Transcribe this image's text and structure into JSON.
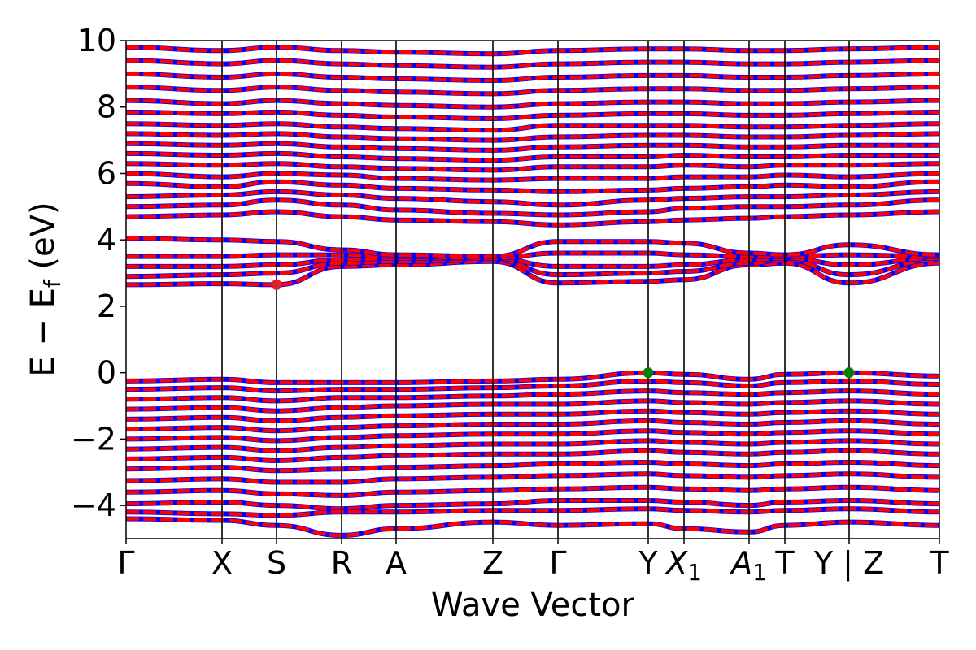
{
  "chart_data": {
    "type": "line",
    "title": "",
    "xlabel": "Wave Vector",
    "ylabel_parts": {
      "base": "E − E",
      "sub": "f",
      "unit": " (eV)"
    },
    "ylim": [
      -5,
      10
    ],
    "yticks": [
      -4,
      -2,
      0,
      2,
      4,
      6,
      8,
      10
    ],
    "ytick_labels": [
      "−4",
      "−2",
      "0",
      "2",
      "4",
      "6",
      "8",
      "10"
    ],
    "grid": false,
    "legend": "none",
    "colors": {
      "band_primary": "#ff0000",
      "band_secondary": "#0000ff",
      "vbm_marker": "#008000",
      "cbm_marker": "#e0202a",
      "axis": "#000000"
    },
    "k_path": [
      {
        "label": "Γ",
        "x": 0.0
      },
      {
        "label": "X",
        "x": 0.118
      },
      {
        "label": "S",
        "x": 0.185
      },
      {
        "label": "R",
        "x": 0.265
      },
      {
        "label": "A",
        "x": 0.332
      },
      {
        "label": "Z",
        "x": 0.451
      },
      {
        "label": "Γ",
        "x": 0.531
      },
      {
        "label": "Y",
        "x": 0.642
      },
      {
        "label": "X",
        "sub": "1",
        "italic": true,
        "x": 0.686
      },
      {
        "label": "A",
        "sub": "1",
        "italic": true,
        "x": 0.766
      },
      {
        "label": "T",
        "x": 0.81
      },
      {
        "label": "Y | Z",
        "x": 0.889
      },
      {
        "label": "T",
        "x": 1.0
      }
    ],
    "cbm_marker": {
      "x": 0.185,
      "y": 2.65
    },
    "vbm_markers": [
      {
        "x": 0.642,
        "y": 0.0
      },
      {
        "x": 0.889,
        "y": 0.0
      }
    ],
    "conduction_bands": [
      {
        "x": [
          0.0,
          0.118,
          0.185,
          0.265,
          0.332,
          0.451,
          0.531,
          0.642,
          0.686,
          0.766,
          0.81,
          0.889,
          1.0
        ],
        "y": [
          2.65,
          2.68,
          2.65,
          3.2,
          3.25,
          3.35,
          2.7,
          2.75,
          2.8,
          3.25,
          3.3,
          2.7,
          3.3
        ]
      },
      {
        "x": [
          0.0,
          0.118,
          0.185,
          0.265,
          0.332,
          0.451,
          0.531,
          0.642,
          0.686,
          0.766,
          0.81,
          0.889,
          1.0
        ],
        "y": [
          2.9,
          2.95,
          3.0,
          3.3,
          3.35,
          3.4,
          2.95,
          3.0,
          3.05,
          3.3,
          3.4,
          2.95,
          3.4
        ]
      },
      {
        "x": [
          0.0,
          0.118,
          0.185,
          0.265,
          0.332,
          0.451,
          0.531,
          0.642,
          0.686,
          0.766,
          0.81,
          0.889,
          1.0
        ],
        "y": [
          3.2,
          3.2,
          3.25,
          3.4,
          3.45,
          3.45,
          3.2,
          3.2,
          3.25,
          3.4,
          3.45,
          3.25,
          3.45
        ]
      },
      {
        "x": [
          0.0,
          0.118,
          0.185,
          0.265,
          0.332,
          0.451,
          0.531,
          0.642,
          0.686,
          0.766,
          0.81,
          0.889,
          1.0
        ],
        "y": [
          3.5,
          3.5,
          3.55,
          3.55,
          3.5,
          3.45,
          3.6,
          3.6,
          3.55,
          3.5,
          3.5,
          3.55,
          3.5
        ]
      },
      {
        "x": [
          0.0,
          0.118,
          0.185,
          0.265,
          0.332,
          0.451,
          0.531,
          0.642,
          0.686,
          0.766,
          0.81,
          0.889,
          1.0
        ],
        "y": [
          4.05,
          4.0,
          3.95,
          3.7,
          3.55,
          3.5,
          3.95,
          3.95,
          3.9,
          3.6,
          3.55,
          3.85,
          3.55
        ]
      },
      {
        "x": [
          0.0,
          0.118,
          0.185,
          0.265,
          0.332,
          0.451,
          0.531,
          0.642,
          0.686,
          0.766,
          0.81,
          0.889,
          1.0
        ],
        "y": [
          4.7,
          4.75,
          4.85,
          4.7,
          4.6,
          4.55,
          4.45,
          4.55,
          4.6,
          4.65,
          4.7,
          4.75,
          4.85
        ]
      },
      {
        "x": [
          0.0,
          0.118,
          0.185,
          0.265,
          0.332,
          0.451,
          0.531,
          0.642,
          0.686,
          0.766,
          0.81,
          0.889,
          1.0
        ],
        "y": [
          5.0,
          5.05,
          5.2,
          5.05,
          4.9,
          4.8,
          4.75,
          4.85,
          4.95,
          5.0,
          5.0,
          5.05,
          5.2
        ]
      },
      {
        "x": [
          0.0,
          0.118,
          0.185,
          0.265,
          0.332,
          0.451,
          0.531,
          0.642,
          0.686,
          0.766,
          0.81,
          0.889,
          1.0
        ],
        "y": [
          5.3,
          5.35,
          5.45,
          5.35,
          5.25,
          5.15,
          5.05,
          5.2,
          5.25,
          5.3,
          5.3,
          5.35,
          5.45
        ]
      },
      {
        "x": [
          0.0,
          0.118,
          0.185,
          0.265,
          0.332,
          0.451,
          0.531,
          0.642,
          0.686,
          0.766,
          0.81,
          0.889,
          1.0
        ],
        "y": [
          5.7,
          5.6,
          5.75,
          5.65,
          5.55,
          5.5,
          5.45,
          5.5,
          5.55,
          5.6,
          5.65,
          5.6,
          5.75
        ]
      },
      {
        "x": [
          0.0,
          0.118,
          0.185,
          0.265,
          0.332,
          0.451,
          0.531,
          0.642,
          0.686,
          0.766,
          0.81,
          0.889,
          1.0
        ],
        "y": [
          6.0,
          5.9,
          6.0,
          5.95,
          5.85,
          5.8,
          5.85,
          5.85,
          5.9,
          5.9,
          5.95,
          5.9,
          6.0
        ]
      },
      {
        "x": [
          0.0,
          0.118,
          0.185,
          0.265,
          0.332,
          0.451,
          0.531,
          0.642,
          0.686,
          0.766,
          0.81,
          0.889,
          1.0
        ],
        "y": [
          6.3,
          6.25,
          6.3,
          6.2,
          6.15,
          6.1,
          6.2,
          6.2,
          6.25,
          6.2,
          6.25,
          6.25,
          6.3
        ]
      },
      {
        "x": [
          0.0,
          0.118,
          0.185,
          0.265,
          0.332,
          0.451,
          0.531,
          0.642,
          0.686,
          0.766,
          0.81,
          0.889,
          1.0
        ],
        "y": [
          6.6,
          6.55,
          6.6,
          6.5,
          6.45,
          6.4,
          6.5,
          6.5,
          6.55,
          6.5,
          6.5,
          6.55,
          6.55
        ]
      },
      {
        "x": [
          0.0,
          0.118,
          0.185,
          0.265,
          0.332,
          0.451,
          0.531,
          0.642,
          0.686,
          0.766,
          0.81,
          0.889,
          1.0
        ],
        "y": [
          6.9,
          6.85,
          6.9,
          6.8,
          6.75,
          6.7,
          6.8,
          6.85,
          6.85,
          6.8,
          6.8,
          6.85,
          6.85
        ]
      },
      {
        "x": [
          0.0,
          0.118,
          0.185,
          0.265,
          0.332,
          0.451,
          0.531,
          0.642,
          0.686,
          0.766,
          0.81,
          0.889,
          1.0
        ],
        "y": [
          7.2,
          7.15,
          7.2,
          7.1,
          7.05,
          7.0,
          7.1,
          7.15,
          7.15,
          7.1,
          7.1,
          7.15,
          7.2
        ]
      },
      {
        "x": [
          0.0,
          0.118,
          0.185,
          0.265,
          0.332,
          0.451,
          0.531,
          0.642,
          0.686,
          0.766,
          0.81,
          0.889,
          1.0
        ],
        "y": [
          7.5,
          7.45,
          7.5,
          7.4,
          7.35,
          7.3,
          7.45,
          7.45,
          7.45,
          7.4,
          7.4,
          7.45,
          7.5
        ]
      },
      {
        "x": [
          0.0,
          0.118,
          0.185,
          0.265,
          0.332,
          0.451,
          0.531,
          0.642,
          0.686,
          0.766,
          0.81,
          0.889,
          1.0
        ],
        "y": [
          7.85,
          7.8,
          7.85,
          7.75,
          7.7,
          7.65,
          7.75,
          7.8,
          7.8,
          7.75,
          7.75,
          7.8,
          7.85
        ]
      },
      {
        "x": [
          0.0,
          0.118,
          0.185,
          0.265,
          0.332,
          0.451,
          0.531,
          0.642,
          0.686,
          0.766,
          0.81,
          0.889,
          1.0
        ],
        "y": [
          8.2,
          8.1,
          8.2,
          8.1,
          8.05,
          8.0,
          8.1,
          8.15,
          8.15,
          8.1,
          8.1,
          8.15,
          8.2
        ]
      },
      {
        "x": [
          0.0,
          0.118,
          0.185,
          0.265,
          0.332,
          0.451,
          0.531,
          0.642,
          0.686,
          0.766,
          0.81,
          0.889,
          1.0
        ],
        "y": [
          8.6,
          8.5,
          8.6,
          8.5,
          8.45,
          8.4,
          8.5,
          8.55,
          8.55,
          8.5,
          8.5,
          8.55,
          8.6
        ]
      },
      {
        "x": [
          0.0,
          0.118,
          0.185,
          0.265,
          0.332,
          0.451,
          0.531,
          0.642,
          0.686,
          0.766,
          0.81,
          0.889,
          1.0
        ],
        "y": [
          9.0,
          8.9,
          9.0,
          8.9,
          8.85,
          8.8,
          8.9,
          8.95,
          8.95,
          8.9,
          8.9,
          8.95,
          9.0
        ]
      },
      {
        "x": [
          0.0,
          0.118,
          0.185,
          0.265,
          0.332,
          0.451,
          0.531,
          0.642,
          0.686,
          0.766,
          0.81,
          0.889,
          1.0
        ],
        "y": [
          9.4,
          9.3,
          9.4,
          9.3,
          9.25,
          9.2,
          9.3,
          9.35,
          9.35,
          9.3,
          9.3,
          9.35,
          9.4
        ]
      },
      {
        "x": [
          0.0,
          0.118,
          0.185,
          0.265,
          0.332,
          0.451,
          0.531,
          0.642,
          0.686,
          0.766,
          0.81,
          0.889,
          1.0
        ],
        "y": [
          9.8,
          9.7,
          9.8,
          9.7,
          9.65,
          9.6,
          9.7,
          9.75,
          9.75,
          9.7,
          9.7,
          9.75,
          9.8
        ]
      }
    ],
    "valence_bands": [
      {
        "x": [
          0.0,
          0.118,
          0.185,
          0.265,
          0.332,
          0.451,
          0.531,
          0.642,
          0.686,
          0.766,
          0.81,
          0.889,
          1.0
        ],
        "y": [
          -0.25,
          -0.2,
          -0.3,
          -0.3,
          -0.3,
          -0.25,
          -0.2,
          0.0,
          -0.05,
          -0.2,
          -0.05,
          0.0,
          -0.1
        ]
      },
      {
        "x": [
          0.0,
          0.118,
          0.185,
          0.265,
          0.332,
          0.451,
          0.531,
          0.642,
          0.686,
          0.766,
          0.81,
          0.889,
          1.0
        ],
        "y": [
          -0.5,
          -0.45,
          -0.55,
          -0.5,
          -0.5,
          -0.45,
          -0.4,
          -0.25,
          -0.3,
          -0.4,
          -0.3,
          -0.25,
          -0.35
        ]
      },
      {
        "x": [
          0.0,
          0.118,
          0.185,
          0.265,
          0.332,
          0.451,
          0.531,
          0.642,
          0.686,
          0.766,
          0.81,
          0.889,
          1.0
        ],
        "y": [
          -0.8,
          -0.75,
          -0.85,
          -0.75,
          -0.75,
          -0.7,
          -0.65,
          -0.55,
          -0.6,
          -0.65,
          -0.6,
          -0.55,
          -0.65
        ]
      },
      {
        "x": [
          0.0,
          0.118,
          0.185,
          0.265,
          0.332,
          0.451,
          0.531,
          0.642,
          0.686,
          0.766,
          0.81,
          0.889,
          1.0
        ],
        "y": [
          -1.1,
          -1.05,
          -1.15,
          -1.05,
          -1.0,
          -0.95,
          -0.95,
          -0.85,
          -0.9,
          -0.95,
          -0.9,
          -0.85,
          -0.95
        ]
      },
      {
        "x": [
          0.0,
          0.118,
          0.185,
          0.265,
          0.332,
          0.451,
          0.531,
          0.642,
          0.686,
          0.766,
          0.81,
          0.889,
          1.0
        ],
        "y": [
          -1.4,
          -1.35,
          -1.45,
          -1.35,
          -1.3,
          -1.25,
          -1.25,
          -1.15,
          -1.2,
          -1.25,
          -1.2,
          -1.15,
          -1.25
        ]
      },
      {
        "x": [
          0.0,
          0.118,
          0.185,
          0.265,
          0.332,
          0.451,
          0.531,
          0.642,
          0.686,
          0.766,
          0.81,
          0.889,
          1.0
        ],
        "y": [
          -1.7,
          -1.65,
          -1.75,
          -1.65,
          -1.6,
          -1.55,
          -1.55,
          -1.45,
          -1.5,
          -1.55,
          -1.5,
          -1.45,
          -1.55
        ]
      },
      {
        "x": [
          0.0,
          0.118,
          0.185,
          0.265,
          0.332,
          0.451,
          0.531,
          0.642,
          0.686,
          0.766,
          0.81,
          0.889,
          1.0
        ],
        "y": [
          -2.0,
          -1.95,
          -2.05,
          -1.95,
          -1.9,
          -1.85,
          -1.85,
          -1.75,
          -1.8,
          -1.85,
          -1.8,
          -1.75,
          -1.85
        ]
      },
      {
        "x": [
          0.0,
          0.118,
          0.185,
          0.265,
          0.332,
          0.451,
          0.531,
          0.642,
          0.686,
          0.766,
          0.81,
          0.889,
          1.0
        ],
        "y": [
          -2.3,
          -2.25,
          -2.35,
          -2.25,
          -2.2,
          -2.15,
          -2.15,
          -2.05,
          -2.1,
          -2.15,
          -2.1,
          -2.05,
          -2.15
        ]
      },
      {
        "x": [
          0.0,
          0.118,
          0.185,
          0.265,
          0.332,
          0.451,
          0.531,
          0.642,
          0.686,
          0.766,
          0.81,
          0.889,
          1.0
        ],
        "y": [
          -2.6,
          -2.55,
          -2.65,
          -2.55,
          -2.5,
          -2.45,
          -2.45,
          -2.35,
          -2.4,
          -2.45,
          -2.4,
          -2.35,
          -2.45
        ]
      },
      {
        "x": [
          0.0,
          0.118,
          0.185,
          0.265,
          0.332,
          0.451,
          0.531,
          0.642,
          0.686,
          0.766,
          0.81,
          0.889,
          1.0
        ],
        "y": [
          -2.9,
          -2.85,
          -2.95,
          -2.9,
          -2.85,
          -2.8,
          -2.75,
          -2.7,
          -2.75,
          -2.8,
          -2.75,
          -2.7,
          -2.8
        ]
      },
      {
        "x": [
          0.0,
          0.118,
          0.185,
          0.265,
          0.332,
          0.451,
          0.531,
          0.642,
          0.686,
          0.766,
          0.81,
          0.889,
          1.0
        ],
        "y": [
          -3.25,
          -3.2,
          -3.3,
          -3.3,
          -3.2,
          -3.15,
          -3.1,
          -3.05,
          -3.1,
          -3.15,
          -3.1,
          -3.05,
          -3.15
        ]
      },
      {
        "x": [
          0.0,
          0.118,
          0.185,
          0.265,
          0.332,
          0.451,
          0.531,
          0.642,
          0.686,
          0.766,
          0.81,
          0.889,
          1.0
        ],
        "y": [
          -3.6,
          -3.55,
          -3.65,
          -3.7,
          -3.6,
          -3.55,
          -3.5,
          -3.45,
          -3.5,
          -3.55,
          -3.5,
          -3.45,
          -3.55
        ]
      },
      {
        "x": [
          0.0,
          0.118,
          0.185,
          0.265,
          0.332,
          0.451,
          0.531,
          0.642,
          0.686,
          0.766,
          0.81,
          0.889,
          1.0
        ],
        "y": [
          -3.95,
          -3.9,
          -4.0,
          -4.1,
          -4.0,
          -3.95,
          -3.85,
          -3.85,
          -3.9,
          -4.0,
          -3.9,
          -3.85,
          -3.95
        ]
      },
      {
        "x": [
          0.0,
          0.118,
          0.185,
          0.265,
          0.332,
          0.451,
          0.531,
          0.642,
          0.686,
          0.766,
          0.81,
          0.889,
          1.0
        ],
        "y": [
          -4.2,
          -4.25,
          -4.3,
          -4.2,
          -4.2,
          -4.15,
          -4.15,
          -4.1,
          -4.15,
          -4.2,
          -4.15,
          -4.1,
          -4.2
        ]
      },
      {
        "x": [
          0.0,
          0.118,
          0.185,
          0.265,
          0.332,
          0.451,
          0.531,
          0.642,
          0.686,
          0.766,
          0.81,
          0.889,
          1.0
        ],
        "y": [
          -4.4,
          -4.45,
          -4.6,
          -4.9,
          -4.7,
          -4.5,
          -4.6,
          -4.55,
          -4.7,
          -4.8,
          -4.6,
          -4.5,
          -4.6
        ]
      }
    ]
  }
}
